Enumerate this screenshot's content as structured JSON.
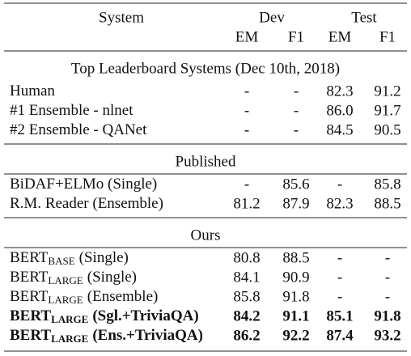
{
  "header": {
    "system": "System",
    "groups": [
      "Dev",
      "Test"
    ],
    "columns": [
      "EM",
      "F1",
      "EM",
      "F1"
    ]
  },
  "sections": [
    {
      "title": "Top Leaderboard Systems (Dec 10th, 2018)",
      "rows": [
        {
          "name": "Human",
          "values": [
            "-",
            "-",
            "82.3",
            "91.2"
          ]
        },
        {
          "name": "#1 Ensemble - nlnet",
          "values": [
            "-",
            "-",
            "86.0",
            "91.7"
          ]
        },
        {
          "name": "#2 Ensemble - QANet",
          "values": [
            "-",
            "-",
            "84.5",
            "90.5"
          ]
        }
      ]
    },
    {
      "title": "Published",
      "rows": [
        {
          "name": "BiDAF+ELMo (Single)",
          "values": [
            "-",
            "85.6",
            "-",
            "85.8"
          ]
        },
        {
          "name": "R.M. Reader (Ensemble)",
          "values": [
            "81.2",
            "87.9",
            "82.3",
            "88.5"
          ]
        }
      ]
    },
    {
      "title": "Ours",
      "rows": [
        {
          "name": "BERT",
          "sub": "BASE",
          "suffix": "(Single)",
          "values": [
            "80.8",
            "88.5",
            "-",
            "-"
          ]
        },
        {
          "name": "BERT",
          "sub": "LARGE",
          "suffix": "(Single)",
          "values": [
            "84.1",
            "90.9",
            "-",
            "-"
          ]
        },
        {
          "name": "BERT",
          "sub": "LARGE",
          "suffix": "(Ensemble)",
          "values": [
            "85.8",
            "91.8",
            "-",
            "-"
          ]
        },
        {
          "name": "BERT",
          "sub": "LARGE",
          "suffix": "(Sgl.+TriviaQA)",
          "values": [
            "84.2",
            "91.1",
            "85.1",
            "91.8"
          ],
          "bold": true
        },
        {
          "name": "BERT",
          "sub": "LARGE",
          "suffix": "(Ens.+TriviaQA)",
          "values": [
            "86.2",
            "92.2",
            "87.4",
            "93.2"
          ],
          "bold": true
        }
      ]
    }
  ]
}
